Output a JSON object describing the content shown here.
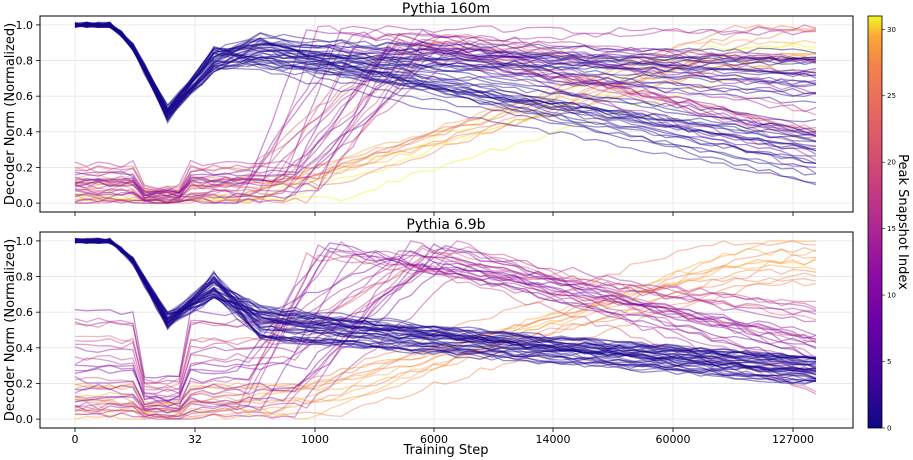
{
  "chart_data": [
    {
      "type": "line",
      "title": "Pythia 160m",
      "ylabel": "Decoder Norm (Normalized)",
      "xlabel": "",
      "x_categories": [
        "0",
        "32",
        "1000",
        "6000",
        "14000",
        "60000",
        "127000"
      ],
      "ylim": [
        -0.05,
        1.05
      ],
      "yticks": [
        "0.0",
        "0.2",
        "0.4",
        "0.6",
        "0.8",
        "1.0"
      ],
      "grid": true,
      "series_groups": [
        {
          "peak": 0,
          "count": 40,
          "pattern": "dip then decay",
          "start": 1.0,
          "dip_at_32": 0.5,
          "end_range": [
            0.1,
            0.85
          ]
        },
        {
          "peak": 20,
          "count": 25,
          "pattern": "rise then decay",
          "start_range": [
            0.0,
            0.23
          ],
          "end_range": [
            0.15,
            1.0
          ]
        },
        {
          "peak": 30,
          "count": 12,
          "pattern": "late rise",
          "start_range": [
            0.0,
            0.15
          ],
          "end_range": [
            0.8,
            1.0
          ]
        }
      ]
    },
    {
      "type": "line",
      "title": "Pythia 6.9b",
      "ylabel": "Decoder Norm (Normalized)",
      "xlabel": "Training Step",
      "x_categories": [
        "0",
        "32",
        "1000",
        "6000",
        "14000",
        "60000",
        "127000"
      ],
      "ylim": [
        -0.05,
        1.05
      ],
      "yticks": [
        "0.0",
        "0.2",
        "0.4",
        "0.6",
        "0.8",
        "1.0"
      ],
      "grid": true,
      "series_groups": [
        {
          "peak": 0,
          "count": 40,
          "pattern": "dip then decay",
          "start": 1.0,
          "dip_at_32": 0.55,
          "end_range": [
            0.2,
            0.35
          ]
        },
        {
          "peak": 15,
          "count": 25,
          "pattern": "rise then decay",
          "start_range": [
            0.0,
            0.6
          ],
          "end_range": [
            0.15,
            0.65
          ]
        },
        {
          "peak": 30,
          "count": 12,
          "pattern": "late rise",
          "start_range": [
            0.0,
            0.23
          ],
          "end_range": [
            0.75,
            1.0
          ]
        }
      ]
    }
  ],
  "colorbar": {
    "label": "Peak Snapshot Index",
    "ticks": [
      "0",
      "5",
      "10",
      "15",
      "20",
      "25",
      "30"
    ],
    "range": [
      0,
      31
    ],
    "colormap": "plasma"
  }
}
